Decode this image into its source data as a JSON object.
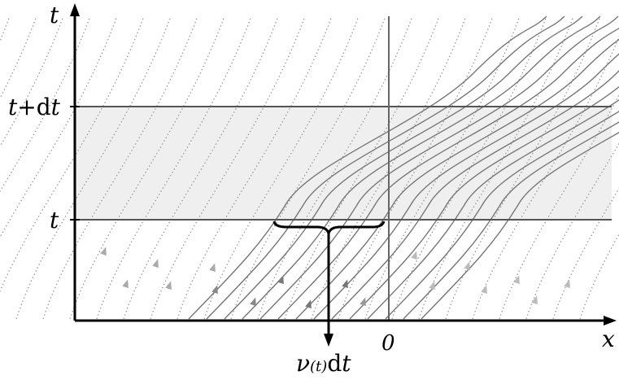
{
  "labels": {
    "t_axis": "t",
    "x_axis": "x",
    "t_plus_dt_t": "t",
    "t_plus_dt_plus": "+d",
    "t_plus_dt_t2": "t",
    "t_level": "t",
    "origin": "0",
    "flux_nu": "ν",
    "flux_arg": "(t)",
    "flux_d": "d",
    "flux_t": "t"
  },
  "colors": {
    "band_fill": "#efefef",
    "axis": "#000000",
    "horizontal_lines": "#555555",
    "vertical_line": "#666666",
    "solid_streamlines": "#777777",
    "dotted_streamlines": "#9a9a9a",
    "brace": "#000000"
  }
}
